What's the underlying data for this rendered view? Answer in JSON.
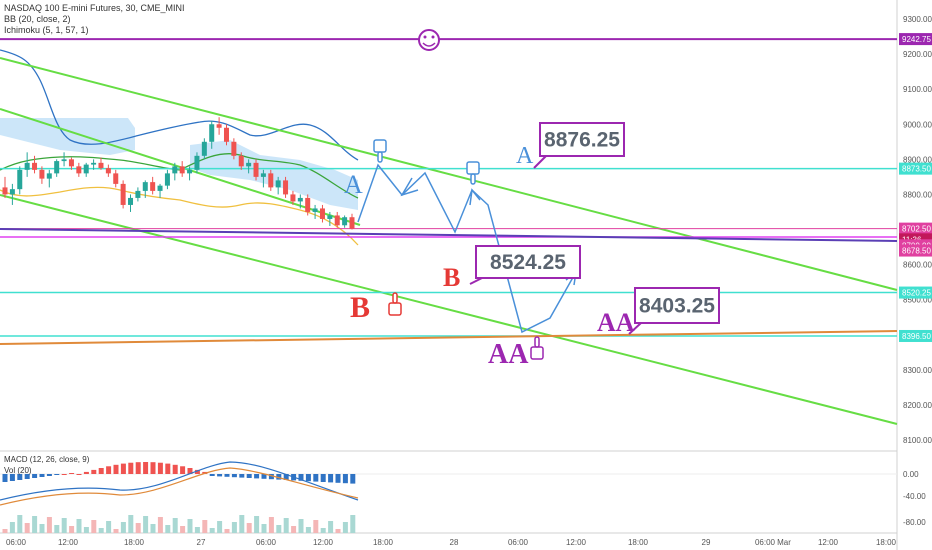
{
  "chart_data": {
    "type": "candlestick",
    "symbol": "NASDAQ 100 E-mini Futures, 30, CME_MINI",
    "indicators": {
      "bb": "BB (20, close, 2)",
      "ichimoku": "Ichimoku (5, 1, 57, 1)",
      "macd": "MACD (12, 26, close, 9)",
      "vol": "Vol (20)"
    },
    "price_axis_ticks": [
      "9300.00",
      "9200.00",
      "9100.00",
      "9000.00",
      "8900.00",
      "8800.00",
      "8700.00",
      "8600.00",
      "8500.00",
      "8400.00",
      "8300.00",
      "8200.00",
      "8100.00"
    ],
    "price_labels": [
      {
        "text": "9242.75",
        "price": 9242.75,
        "color": "#9c27b0"
      },
      {
        "text": "8873.50",
        "price": 8873.5,
        "color": "#40e0d0"
      },
      {
        "text": "8702.50",
        "price": 8702.5,
        "color": "#e040a0"
      },
      {
        "text": "11:36",
        "price": 8672,
        "color": "#c2185b"
      },
      {
        "text": "8700.00",
        "price": 8655,
        "color": "#e040a0"
      },
      {
        "text": "8678.50",
        "price": 8640,
        "color": "#e040a0"
      },
      {
        "text": "8520.25",
        "price": 8520.25,
        "color": "#40e0d0"
      },
      {
        "text": "8396.50",
        "price": 8396.5,
        "color": "#40e0d0"
      }
    ],
    "macd_axis_ticks": [
      "0.00",
      "-40.00",
      "-80.00"
    ],
    "time_axis_ticks": [
      "06:00",
      "12:00",
      "18:00",
      "27",
      "06:00",
      "12:00",
      "18:00",
      "28",
      "06:00",
      "12:00",
      "18:00",
      "29",
      "06:00",
      "Mar",
      "12:00",
      "18:00"
    ],
    "annotations": [
      {
        "label": "A",
        "price_box": "8876.25",
        "color": "#4a90d9"
      },
      {
        "label": "B",
        "price_box": "8524.25",
        "color": "#e53935"
      },
      {
        "label": "AA",
        "price_box": "8403.25",
        "color": "#9c27b0"
      }
    ],
    "last_price": 8702.5,
    "candles": [
      [
        8820,
        8850,
        8790,
        8800
      ],
      [
        8800,
        8830,
        8770,
        8815
      ],
      [
        8815,
        8880,
        8800,
        8870
      ],
      [
        8870,
        8920,
        8850,
        8890
      ],
      [
        8890,
        8910,
        8860,
        8870
      ],
      [
        8870,
        8880,
        8830,
        8845
      ],
      [
        8845,
        8870,
        8820,
        8860
      ],
      [
        8860,
        8900,
        8850,
        8895
      ],
      [
        8895,
        8920,
        8880,
        8900
      ],
      [
        8900,
        8905,
        8870,
        8880
      ],
      [
        8880,
        8890,
        8850,
        8860
      ],
      [
        8860,
        8890,
        8850,
        8885
      ],
      [
        8885,
        8900,
        8870,
        8890
      ],
      [
        8890,
        8905,
        8870,
        8875
      ],
      [
        8875,
        8885,
        8850,
        8860
      ],
      [
        8860,
        8870,
        8820,
        8830
      ],
      [
        8830,
        8840,
        8760,
        8770
      ],
      [
        8770,
        8800,
        8750,
        8790
      ],
      [
        8790,
        8820,
        8780,
        8810
      ],
      [
        8810,
        8840,
        8790,
        8835
      ],
      [
        8835,
        8850,
        8800,
        8810
      ],
      [
        8810,
        8830,
        8790,
        8825
      ],
      [
        8825,
        8870,
        8815,
        8860
      ],
      [
        8860,
        8890,
        8840,
        8880
      ],
      [
        8880,
        8895,
        8850,
        8860
      ],
      [
        8860,
        8880,
        8840,
        8870
      ],
      [
        8870,
        8920,
        8860,
        8910
      ],
      [
        8910,
        8960,
        8900,
        8950
      ],
      [
        8950,
        9010,
        8930,
        9000
      ],
      [
        9000,
        9020,
        8970,
        8990
      ],
      [
        8990,
        9000,
        8940,
        8950
      ],
      [
        8950,
        8960,
        8900,
        8910
      ],
      [
        8910,
        8920,
        8870,
        8880
      ],
      [
        8880,
        8900,
        8860,
        8890
      ],
      [
        8890,
        8900,
        8840,
        8850
      ],
      [
        8850,
        8870,
        8820,
        8860
      ],
      [
        8860,
        8870,
        8810,
        8820
      ],
      [
        8820,
        8850,
        8800,
        8840
      ],
      [
        8840,
        8850,
        8790,
        8800
      ],
      [
        8800,
        8810,
        8770,
        8780
      ],
      [
        8780,
        8800,
        8760,
        8790
      ],
      [
        8790,
        8800,
        8740,
        8750
      ],
      [
        8750,
        8770,
        8730,
        8760
      ],
      [
        8760,
        8770,
        8720,
        8730
      ],
      [
        8730,
        8750,
        8710,
        8740
      ],
      [
        8740,
        8750,
        8705,
        8712
      ],
      [
        8712,
        8740,
        8705,
        8735
      ],
      [
        8735,
        8745,
        8700,
        8702.5
      ]
    ]
  }
}
